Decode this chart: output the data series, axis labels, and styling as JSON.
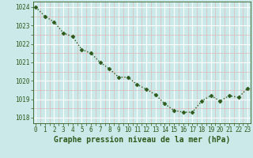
{
  "x": [
    0,
    1,
    2,
    3,
    4,
    5,
    6,
    7,
    8,
    9,
    10,
    11,
    12,
    13,
    14,
    15,
    16,
    17,
    18,
    19,
    20,
    21,
    22,
    23
  ],
  "y": [
    1024.0,
    1023.5,
    1023.2,
    1022.6,
    1022.4,
    1021.7,
    1021.5,
    1021.0,
    1020.65,
    1020.2,
    1020.2,
    1019.8,
    1019.55,
    1019.25,
    1018.75,
    1018.4,
    1018.3,
    1018.3,
    1018.9,
    1019.2,
    1018.9,
    1019.2,
    1019.1,
    1019.6
  ],
  "ylim": [
    1017.7,
    1024.3
  ],
  "yticks": [
    1018,
    1019,
    1020,
    1021,
    1022,
    1023,
    1024
  ],
  "xlim": [
    -0.3,
    23.3
  ],
  "xticks": [
    0,
    1,
    2,
    3,
    4,
    5,
    6,
    7,
    8,
    9,
    10,
    11,
    12,
    13,
    14,
    15,
    16,
    17,
    18,
    19,
    20,
    21,
    22,
    23
  ],
  "line_color": "#2d5a1b",
  "marker": "D",
  "marker_size": 2.5,
  "marker_color": "#2d5a1b",
  "bg_color": "#cce9e9",
  "grid_major_color": "#ffffff",
  "grid_minor_color": "#ddb8b8",
  "xlabel": "Graphe pression niveau de la mer (hPa)",
  "xlabel_color": "#2d5a1b",
  "xlabel_fontsize": 7,
  "tick_fontsize": 5.5,
  "tick_color": "#2d5a1b",
  "line_width": 1.0
}
